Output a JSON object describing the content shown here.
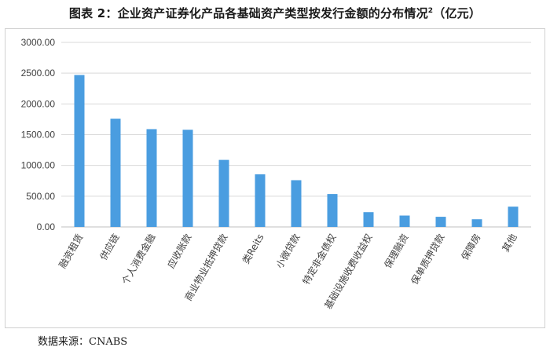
{
  "title": {
    "text": "图表 2：企业资产证券化产品各基础资产类型按发行金额的分布情况",
    "superscript": "2",
    "unit": "（亿元）"
  },
  "source": "数据来源：CNABS",
  "colors": {
    "bar": "#4a9de0",
    "grid": "#d9d9d9",
    "axis": "#bfbfbf",
    "text": "#404040"
  },
  "chart_data": {
    "type": "bar",
    "categories": [
      "融资租赁",
      "供应链",
      "个人消费金融",
      "应收账款",
      "商业物业抵押贷款",
      "类Reits",
      "小微贷款",
      "特定非金债权",
      "基础设施收费收益权",
      "保理融资",
      "保单质押贷款",
      "保障房",
      "其他"
    ],
    "values": [
      2470,
      1760,
      1590,
      1580,
      1090,
      855,
      760,
      535,
      240,
      185,
      165,
      125,
      330
    ],
    "ylim": [
      0,
      3000
    ],
    "yticks": [
      "0.00",
      "500.00",
      "1000.00",
      "1500.00",
      "2000.00",
      "2500.00",
      "3000.00"
    ],
    "ytick_values": [
      0,
      500,
      1000,
      1500,
      2000,
      2500,
      3000
    ],
    "grid": true,
    "legend": "none",
    "xlabel": "",
    "ylabel": ""
  }
}
